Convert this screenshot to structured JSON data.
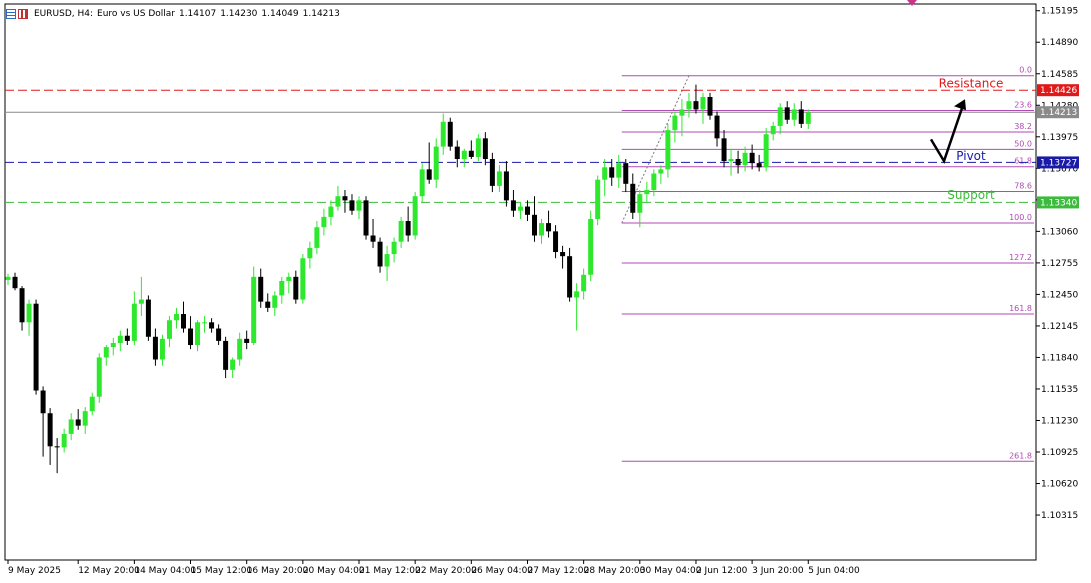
{
  "header": {
    "symbol": "EURUSD, H4:",
    "description": "Euro vs US Dollar",
    "open": "1.14107",
    "high": "1.14230",
    "low": "1.14049",
    "close": "1.14213"
  },
  "colors": {
    "bull": "#2ee82e",
    "bear": "#000000",
    "resistance": "#e01818",
    "pivot": "#1a1aa8",
    "support": "#3cba3c",
    "fib": "#b04ab4",
    "current_price": "#8a8a8a",
    "marker": "#d0308a"
  },
  "chart_data": {
    "type": "candlestick",
    "symbol": "EURUSD",
    "timeframe": "H4",
    "ylim": [
      1.0988,
      1.1526
    ],
    "grid": false,
    "y_ticks": [
      "1.15195",
      "1.14890",
      "1.14585",
      "1.14280",
      "1.13975",
      "1.13670",
      "1.13365",
      "1.13060",
      "1.12755",
      "1.12450",
      "1.12145",
      "1.11840",
      "1.11535",
      "1.11230",
      "1.10925",
      "1.10620",
      "1.10315"
    ],
    "x_ticks": [
      "9 May 2025",
      "12 May 20:00",
      "14 May 04:00",
      "15 May 12:00",
      "16 May 20:00",
      "20 May 04:00",
      "21 May 12:00",
      "22 May 20:00",
      "26 May 04:00",
      "27 May 12:00",
      "28 May 20:00",
      "30 May 04:00",
      "2 Jun 12:00",
      "3 Jun 20:00",
      "5 Jun 04:00"
    ],
    "x_tick_positions": [
      0,
      10,
      18,
      26,
      34,
      42,
      50,
      58,
      66,
      74,
      82,
      90,
      98,
      106,
      114
    ],
    "candles": [
      [
        1.1259,
        1.1265,
        1.1254,
        1.1262
      ],
      [
        1.1262,
        1.1266,
        1.1249,
        1.1251
      ],
      [
        1.1251,
        1.1253,
        1.121,
        1.1218
      ],
      [
        1.1218,
        1.124,
        1.1205,
        1.1236
      ],
      [
        1.1236,
        1.124,
        1.1148,
        1.1152
      ],
      [
        1.1152,
        1.1156,
        1.1088,
        1.113
      ],
      [
        1.113,
        1.1135,
        1.108,
        1.1098
      ],
      [
        1.1098,
        1.1106,
        1.1072,
        1.1097
      ],
      [
        1.1097,
        1.1115,
        1.1092,
        1.111
      ],
      [
        1.111,
        1.113,
        1.1104,
        1.1124
      ],
      [
        1.1124,
        1.1134,
        1.1114,
        1.1118
      ],
      [
        1.1118,
        1.1136,
        1.111,
        1.1132
      ],
      [
        1.1132,
        1.115,
        1.1128,
        1.1146
      ],
      [
        1.1146,
        1.1188,
        1.114,
        1.1184
      ],
      [
        1.1184,
        1.1196,
        1.1176,
        1.1194
      ],
      [
        1.1194,
        1.1203,
        1.1186,
        1.1198
      ],
      [
        1.1198,
        1.121,
        1.119,
        1.1205
      ],
      [
        1.1205,
        1.1212,
        1.1196,
        1.12
      ],
      [
        1.12,
        1.1248,
        1.1196,
        1.1236
      ],
      [
        1.1236,
        1.1262,
        1.1224,
        1.124
      ],
      [
        1.124,
        1.1244,
        1.12,
        1.1204
      ],
      [
        1.1204,
        1.1212,
        1.1176,
        1.1182
      ],
      [
        1.1182,
        1.1206,
        1.1176,
        1.1202
      ],
      [
        1.1202,
        1.1224,
        1.1194,
        1.122
      ],
      [
        1.122,
        1.1232,
        1.1212,
        1.1226
      ],
      [
        1.1226,
        1.1238,
        1.1208,
        1.1212
      ],
      [
        1.1212,
        1.1224,
        1.1192,
        1.1196
      ],
      [
        1.1196,
        1.122,
        1.119,
        1.1218
      ],
      [
        1.1218,
        1.1224,
        1.1208,
        1.1218
      ],
      [
        1.1218,
        1.1222,
        1.1208,
        1.1212
      ],
      [
        1.1212,
        1.1216,
        1.1196,
        1.12
      ],
      [
        1.12,
        1.1204,
        1.1164,
        1.1172
      ],
      [
        1.1172,
        1.1184,
        1.1164,
        1.1182
      ],
      [
        1.1182,
        1.1208,
        1.1176,
        1.1202
      ],
      [
        1.1202,
        1.121,
        1.1192,
        1.1198
      ],
      [
        1.1198,
        1.1272,
        1.1196,
        1.1262
      ],
      [
        1.1262,
        1.127,
        1.1232,
        1.1238
      ],
      [
        1.1238,
        1.1246,
        1.1228,
        1.1232
      ],
      [
        1.1232,
        1.1248,
        1.1224,
        1.1244
      ],
      [
        1.1244,
        1.1262,
        1.1236,
        1.1258
      ],
      [
        1.1258,
        1.1266,
        1.1246,
        1.1262
      ],
      [
        1.1262,
        1.1268,
        1.1236,
        1.124
      ],
      [
        1.124,
        1.1284,
        1.1236,
        1.128
      ],
      [
        1.128,
        1.1296,
        1.127,
        1.129
      ],
      [
        1.129,
        1.1316,
        1.1284,
        1.131
      ],
      [
        1.131,
        1.1328,
        1.1302,
        1.132
      ],
      [
        1.132,
        1.1336,
        1.1312,
        1.133
      ],
      [
        1.133,
        1.135,
        1.1326,
        1.134
      ],
      [
        1.134,
        1.1346,
        1.1324,
        1.1336
      ],
      [
        1.1336,
        1.1342,
        1.1322,
        1.1326
      ],
      [
        1.1326,
        1.134,
        1.1318,
        1.1336
      ],
      [
        1.1336,
        1.134,
        1.1298,
        1.1302
      ],
      [
        1.1302,
        1.1318,
        1.129,
        1.1296
      ],
      [
        1.1296,
        1.13,
        1.1266,
        1.1272
      ],
      [
        1.1272,
        1.1292,
        1.1258,
        1.1284
      ],
      [
        1.1284,
        1.13,
        1.1276,
        1.1296
      ],
      [
        1.1296,
        1.132,
        1.129,
        1.1316
      ],
      [
        1.1316,
        1.133,
        1.1296,
        1.1302
      ],
      [
        1.1302,
        1.1344,
        1.1298,
        1.134
      ],
      [
        1.134,
        1.1372,
        1.1334,
        1.1366
      ],
      [
        1.1366,
        1.1392,
        1.1352,
        1.1356
      ],
      [
        1.1356,
        1.1396,
        1.1348,
        1.1388
      ],
      [
        1.1388,
        1.142,
        1.138,
        1.1412
      ],
      [
        1.1412,
        1.1416,
        1.1384,
        1.1388
      ],
      [
        1.1388,
        1.1394,
        1.1368,
        1.1376
      ],
      [
        1.1376,
        1.1386,
        1.1368,
        1.1384
      ],
      [
        1.1384,
        1.1394,
        1.1376,
        1.1378
      ],
      [
        1.1378,
        1.14,
        1.1374,
        1.1396
      ],
      [
        1.1396,
        1.1402,
        1.137,
        1.1376
      ],
      [
        1.1376,
        1.1382,
        1.1344,
        1.135
      ],
      [
        1.135,
        1.137,
        1.1344,
        1.1364
      ],
      [
        1.1364,
        1.1374,
        1.133,
        1.1336
      ],
      [
        1.1336,
        1.1346,
        1.132,
        1.1326
      ],
      [
        1.1326,
        1.1334,
        1.1318,
        1.133
      ],
      [
        1.133,
        1.1336,
        1.1316,
        1.1322
      ],
      [
        1.1322,
        1.134,
        1.1296,
        1.1302
      ],
      [
        1.1302,
        1.1318,
        1.1294,
        1.1314
      ],
      [
        1.1314,
        1.1326,
        1.13,
        1.1306
      ],
      [
        1.1306,
        1.1312,
        1.128,
        1.1286
      ],
      [
        1.1286,
        1.1292,
        1.127,
        1.1282
      ],
      [
        1.1282,
        1.129,
        1.1238,
        1.1242
      ],
      [
        1.1242,
        1.1256,
        1.121,
        1.1248
      ],
      [
        1.1248,
        1.127,
        1.124,
        1.1264
      ],
      [
        1.1264,
        1.1326,
        1.1258,
        1.1318
      ],
      [
        1.1318,
        1.136,
        1.1312,
        1.1356
      ],
      [
        1.1356,
        1.1376,
        1.134,
        1.1368
      ],
      [
        1.1368,
        1.1376,
        1.135,
        1.1358
      ],
      [
        1.1358,
        1.138,
        1.1348,
        1.1372
      ],
      [
        1.1372,
        1.1376,
        1.1344,
        1.1352
      ],
      [
        1.1352,
        1.1362,
        1.1318,
        1.1324
      ],
      [
        1.1324,
        1.1346,
        1.131,
        1.1342
      ],
      [
        1.1342,
        1.1354,
        1.1334,
        1.1346
      ],
      [
        1.1346,
        1.1366,
        1.134,
        1.1362
      ],
      [
        1.1362,
        1.137,
        1.1352,
        1.1366
      ],
      [
        1.1366,
        1.141,
        1.1358,
        1.1404
      ],
      [
        1.1404,
        1.1422,
        1.1392,
        1.1418
      ],
      [
        1.1418,
        1.1434,
        1.1398,
        1.1424
      ],
      [
        1.1424,
        1.144,
        1.1416,
        1.1432
      ],
      [
        1.1432,
        1.1448,
        1.142,
        1.1424
      ],
      [
        1.1424,
        1.144,
        1.141,
        1.1436
      ],
      [
        1.1436,
        1.144,
        1.1414,
        1.1418
      ],
      [
        1.1418,
        1.1422,
        1.1388,
        1.1396
      ],
      [
        1.1396,
        1.1404,
        1.1368,
        1.1374
      ],
      [
        1.1374,
        1.1386,
        1.136,
        1.1376
      ],
      [
        1.1376,
        1.1384,
        1.1362,
        1.137
      ],
      [
        1.137,
        1.1388,
        1.1364,
        1.1382
      ],
      [
        1.1382,
        1.139,
        1.1366,
        1.1372
      ],
      [
        1.1372,
        1.138,
        1.1364,
        1.1368
      ],
      [
        1.1368,
        1.1406,
        1.1364,
        1.14
      ],
      [
        1.14,
        1.1412,
        1.1394,
        1.1408
      ],
      [
        1.1408,
        1.143,
        1.14,
        1.1426
      ],
      [
        1.1426,
        1.1432,
        1.141,
        1.1414
      ],
      [
        1.1414,
        1.143,
        1.1408,
        1.1424
      ],
      [
        1.1424,
        1.1432,
        1.1406,
        1.141
      ],
      [
        1.141,
        1.1424,
        1.1405,
        1.1421
      ]
    ],
    "levels": [
      {
        "name": "Resistance",
        "price": 1.14426,
        "label": "1.14426",
        "color": "#e01818",
        "style": "dashed"
      },
      {
        "name": "Pivot",
        "price": 1.13727,
        "label": "1.13727",
        "color": "#1a1aa8",
        "style": "dashed"
      },
      {
        "name": "Support",
        "price": 1.1334,
        "label": "1.13340",
        "color": "#3cba3c",
        "style": "dashed"
      },
      {
        "name": "",
        "price": 1.14213,
        "label": "1.14213",
        "color": "#8a8a8a",
        "style": "solid"
      }
    ],
    "fibonacci": {
      "high": 1.14566,
      "low": 1.13141,
      "start_index": 88,
      "levels": [
        "0.0",
        "23.6",
        "38.2",
        "50.0",
        "61.8",
        "78.6",
        "100.0",
        "127.2",
        "161.8",
        "261.8"
      ]
    },
    "annotations": [
      {
        "text": "Resistance",
        "price": 1.1449,
        "color": "#e01818"
      },
      {
        "text": "Pivot",
        "price": 1.1379,
        "color": "#1a1aa8"
      },
      {
        "text": "Support",
        "price": 1.1341,
        "color": "#3cba3c"
      }
    ],
    "arrow": {
      "from_index": 110,
      "from_price": 1.1376,
      "mid_index": 111,
      "mid_price": 1.1376,
      "to_index": 112,
      "to_price": 1.1428
    }
  }
}
